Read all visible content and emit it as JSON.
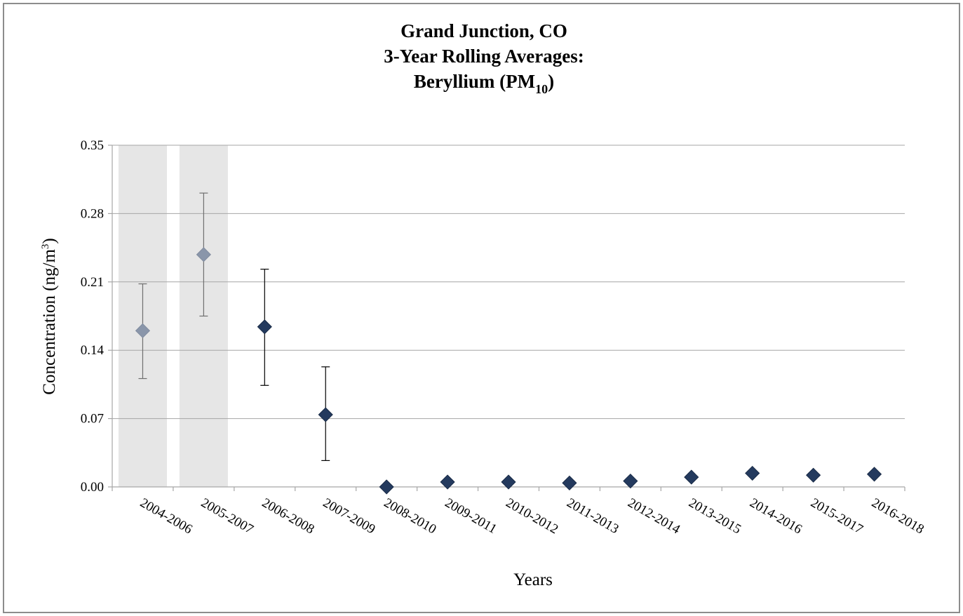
{
  "chart_data": {
    "type": "scatter",
    "title_lines": [
      "Grand Junction, CO",
      "3-Year Rolling Averages:",
      "Beryllium (PM"
    ],
    "title_subscript": "10",
    "title_close": ")",
    "xlabel": "Years",
    "ylabel": "Concentration (ng/m",
    "ylabel_superscript": "3",
    "ylabel_close": ")",
    "ylim": [
      0,
      0.35
    ],
    "ytick_labels": [
      "0.00",
      "0.07",
      "0.14",
      "0.21",
      "0.28",
      "0.35"
    ],
    "ytick_values": [
      0,
      0.07,
      0.14,
      0.21,
      0.28,
      0.35
    ],
    "grid": true,
    "categories": [
      "2004-2006",
      "2005-2007",
      "2006-2008",
      "2007-2009",
      "2008-2010",
      "2009-2011",
      "2010-2012",
      "2011-2013",
      "2012-2014",
      "2013-2015",
      "2014-2016",
      "2015-2017",
      "2016-2018"
    ],
    "values": [
      0.16,
      0.238,
      0.164,
      0.074,
      0.0,
      0.005,
      0.005,
      0.004,
      0.006,
      0.01,
      0.014,
      0.012,
      0.013
    ],
    "error_low": [
      0.111,
      0.175,
      0.104,
      0.027,
      null,
      null,
      null,
      null,
      null,
      null,
      null,
      null,
      null
    ],
    "error_high": [
      0.208,
      0.301,
      0.223,
      0.123,
      null,
      null,
      null,
      null,
      null,
      null,
      null,
      null,
      null
    ],
    "shaded_categories": [
      "2004-2006",
      "2005-2007"
    ],
    "colors": {
      "marker_normal": "#243a5e",
      "marker_shaded": "#8a96aa",
      "shade_band": "#e6e6e6",
      "gridline": "#a6a6a6",
      "errorbar_normal": "#000000",
      "errorbar_shaded": "#6f6f6f"
    }
  }
}
